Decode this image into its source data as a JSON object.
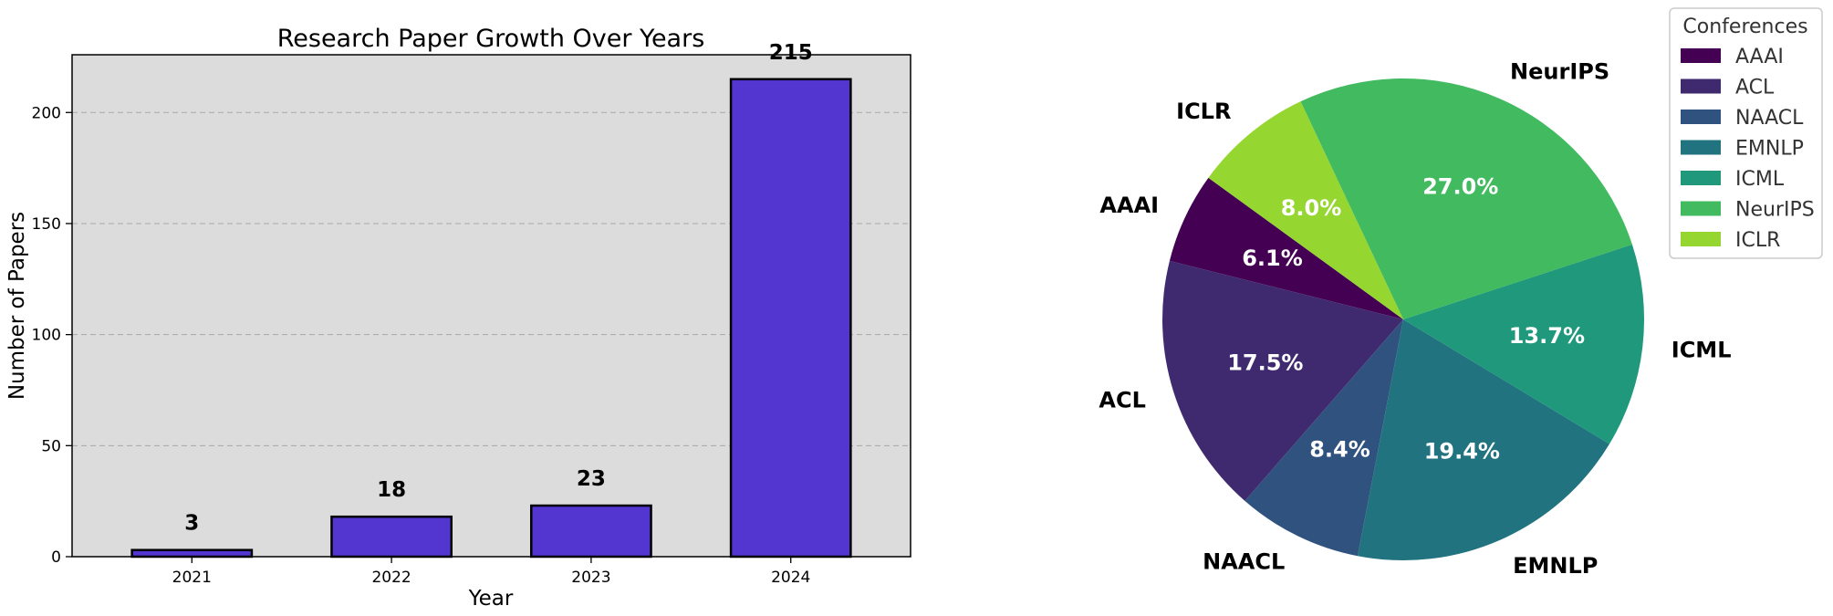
{
  "chart_data": [
    {
      "type": "bar",
      "title": "Research Paper Growth Over Years",
      "xlabel": "Year",
      "ylabel": "Number of Papers",
      "categories": [
        "2021",
        "2022",
        "2023",
        "2024"
      ],
      "values": [
        3,
        18,
        23,
        215
      ],
      "value_labels": [
        "3",
        "18",
        "23",
        "215"
      ],
      "ylim": [
        0,
        226
      ],
      "yticks": [
        0,
        50,
        100,
        150,
        200
      ],
      "ytick_labels": [
        "0",
        "50",
        "100",
        "150",
        "200"
      ],
      "grid": "horizontal dashed",
      "bar_color": "#5236CF",
      "background_color": "#DCDCDC"
    },
    {
      "type": "pie",
      "legend_title": "Conferences",
      "legend_position": "top-right",
      "labels": [
        "AAAI",
        "ACL",
        "NAACL",
        "EMNLP",
        "ICML",
        "NeurIPS",
        "ICLR"
      ],
      "values": [
        6.1,
        17.5,
        8.4,
        19.4,
        13.7,
        27.0,
        8.0
      ],
      "pct_labels": [
        "6.1%",
        "17.5%",
        "8.4%",
        "19.4%",
        "13.7%",
        "27.0%",
        "8.0%"
      ],
      "colors": [
        "#440154",
        "#3F2A70",
        "#30527F",
        "#21737F",
        "#1F987B",
        "#41BA60",
        "#95D631"
      ],
      "start_angle_deg": 144
    }
  ]
}
